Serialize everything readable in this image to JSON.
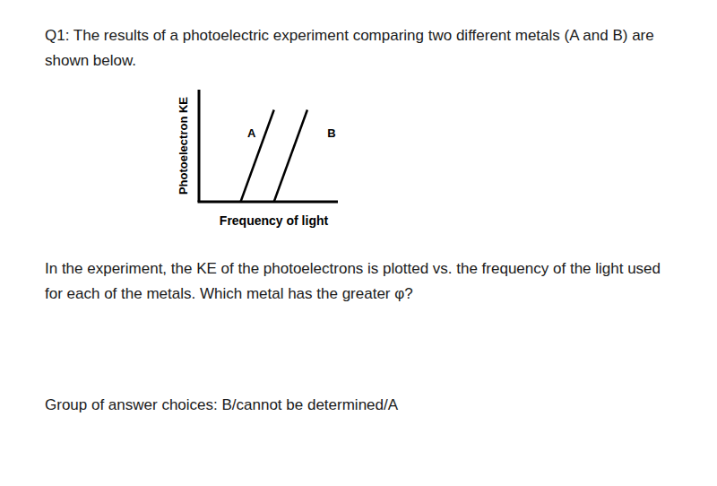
{
  "question": {
    "prompt": "Q1: The results of a photoelectric experiment comparing two different metals (A and B) are shown below.",
    "body": "In the experiment, the KE of the photoelectrons is plotted vs. the frequency of the light used for each of the metals. Which metal has the greater φ?",
    "answer_choices": "Group of answer choices: B/cannot be determined/A"
  },
  "chart_data": {
    "type": "line",
    "x_label": "Frequency of light",
    "y_label": "Photoelectron KE",
    "xlim": [
      0,
      10
    ],
    "ylim": [
      0,
      10
    ],
    "tick_labels": false,
    "grid": false,
    "series": [
      {
        "name": "A",
        "color": "#000000",
        "x": [
          3.0,
          5.4
        ],
        "values": [
          0,
          8.2
        ]
      },
      {
        "name": "B",
        "color": "#000000",
        "x": [
          5.4,
          7.8
        ],
        "values": [
          0,
          8.2
        ]
      }
    ]
  }
}
